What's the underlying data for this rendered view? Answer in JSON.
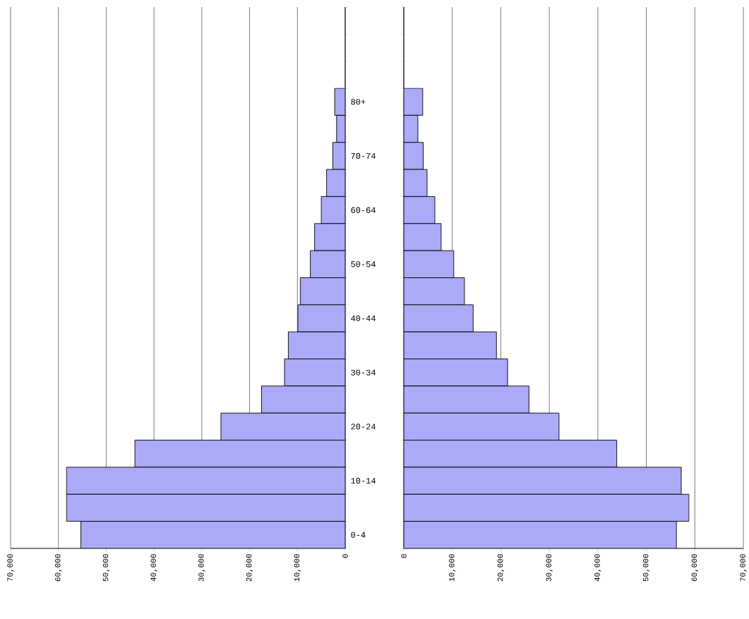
{
  "chart_data": [
    {
      "type": "bar",
      "orientation": "horizontal",
      "color": "#aaaaf8",
      "grid": "x",
      "categories": [
        null,
        null,
        null,
        "80+",
        null,
        "70-74",
        null,
        "60-64",
        null,
        "50-54",
        null,
        "40-44",
        null,
        "30-34",
        null,
        "20-24",
        null,
        "10-14",
        null,
        "0-4"
      ],
      "values": [
        null,
        null,
        null,
        2200,
        1800,
        2600,
        3900,
        5000,
        6400,
        7300,
        9400,
        9900,
        11900,
        12700,
        17500,
        26000,
        44000,
        58300,
        58300,
        55300
      ],
      "xlim": [
        70000,
        0
      ],
      "xticks": [
        {
          "value": 70000,
          "label": "70,000"
        },
        {
          "value": 60000,
          "label": "60,000"
        },
        {
          "value": 50000,
          "label": "50,000"
        },
        {
          "value": 40000,
          "label": "40,000"
        },
        {
          "value": 30000,
          "label": "30,000"
        },
        {
          "value": 20000,
          "label": "20,000"
        },
        {
          "value": 10000,
          "label": "10,000"
        },
        0
      ]
    },
    {
      "type": "bar",
      "orientation": "horizontal",
      "color": "#aaaaf8",
      "grid": "x",
      "tick_labels": "x",
      "categories": [
        null,
        null,
        null,
        null,
        null,
        null,
        null,
        null,
        null,
        null,
        null,
        null,
        null,
        null,
        null,
        null,
        null,
        null,
        null,
        null
      ],
      "values": [
        null,
        null,
        null,
        3900,
        2900,
        4000,
        4800,
        6400,
        7700,
        10300,
        12500,
        14300,
        19100,
        21400,
        25800,
        32000,
        43900,
        57200,
        58800,
        56200
      ],
      "xlim": [
        0,
        70000
      ],
      "xticks": [
        0,
        {
          "value": 10000,
          "label": "10,000"
        },
        {
          "value": 20000,
          "label": "20,000"
        },
        {
          "value": 30000,
          "label": "30,000"
        },
        {
          "value": 40000,
          "label": "40,000"
        },
        {
          "value": 50000,
          "label": "50,000"
        },
        {
          "value": 60000,
          "label": "60,000"
        },
        {
          "value": 70000,
          "label": "70,000"
        }
      ]
    }
  ]
}
